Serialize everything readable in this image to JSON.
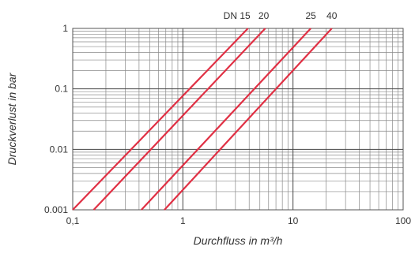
{
  "chart_data": {
    "type": "line",
    "title": "",
    "xlabel": "Durchfluss in m³/h",
    "ylabel": "Druckverlust in bar",
    "x_scale": "log",
    "y_scale": "log",
    "xlim": [
      0.1,
      100
    ],
    "ylim": [
      0.001,
      1
    ],
    "x_ticks": [
      "0,1",
      "1",
      "10",
      "100"
    ],
    "y_ticks": [
      "0.001",
      "0.01",
      "0.1",
      "1"
    ],
    "grid": true,
    "line_color": "#e03044",
    "series": [
      {
        "name": "DN 15",
        "points": [
          [
            0.1,
            0.001
          ],
          [
            3.9,
            1
          ]
        ]
      },
      {
        "name": "20",
        "points": [
          [
            0.155,
            0.001
          ],
          [
            5.6,
            1
          ]
        ]
      },
      {
        "name": "25",
        "points": [
          [
            0.42,
            0.001
          ],
          [
            14.5,
            1
          ]
        ]
      },
      {
        "name": "40",
        "points": [
          [
            0.68,
            0.001
          ],
          [
            22.5,
            1
          ]
        ]
      }
    ]
  }
}
